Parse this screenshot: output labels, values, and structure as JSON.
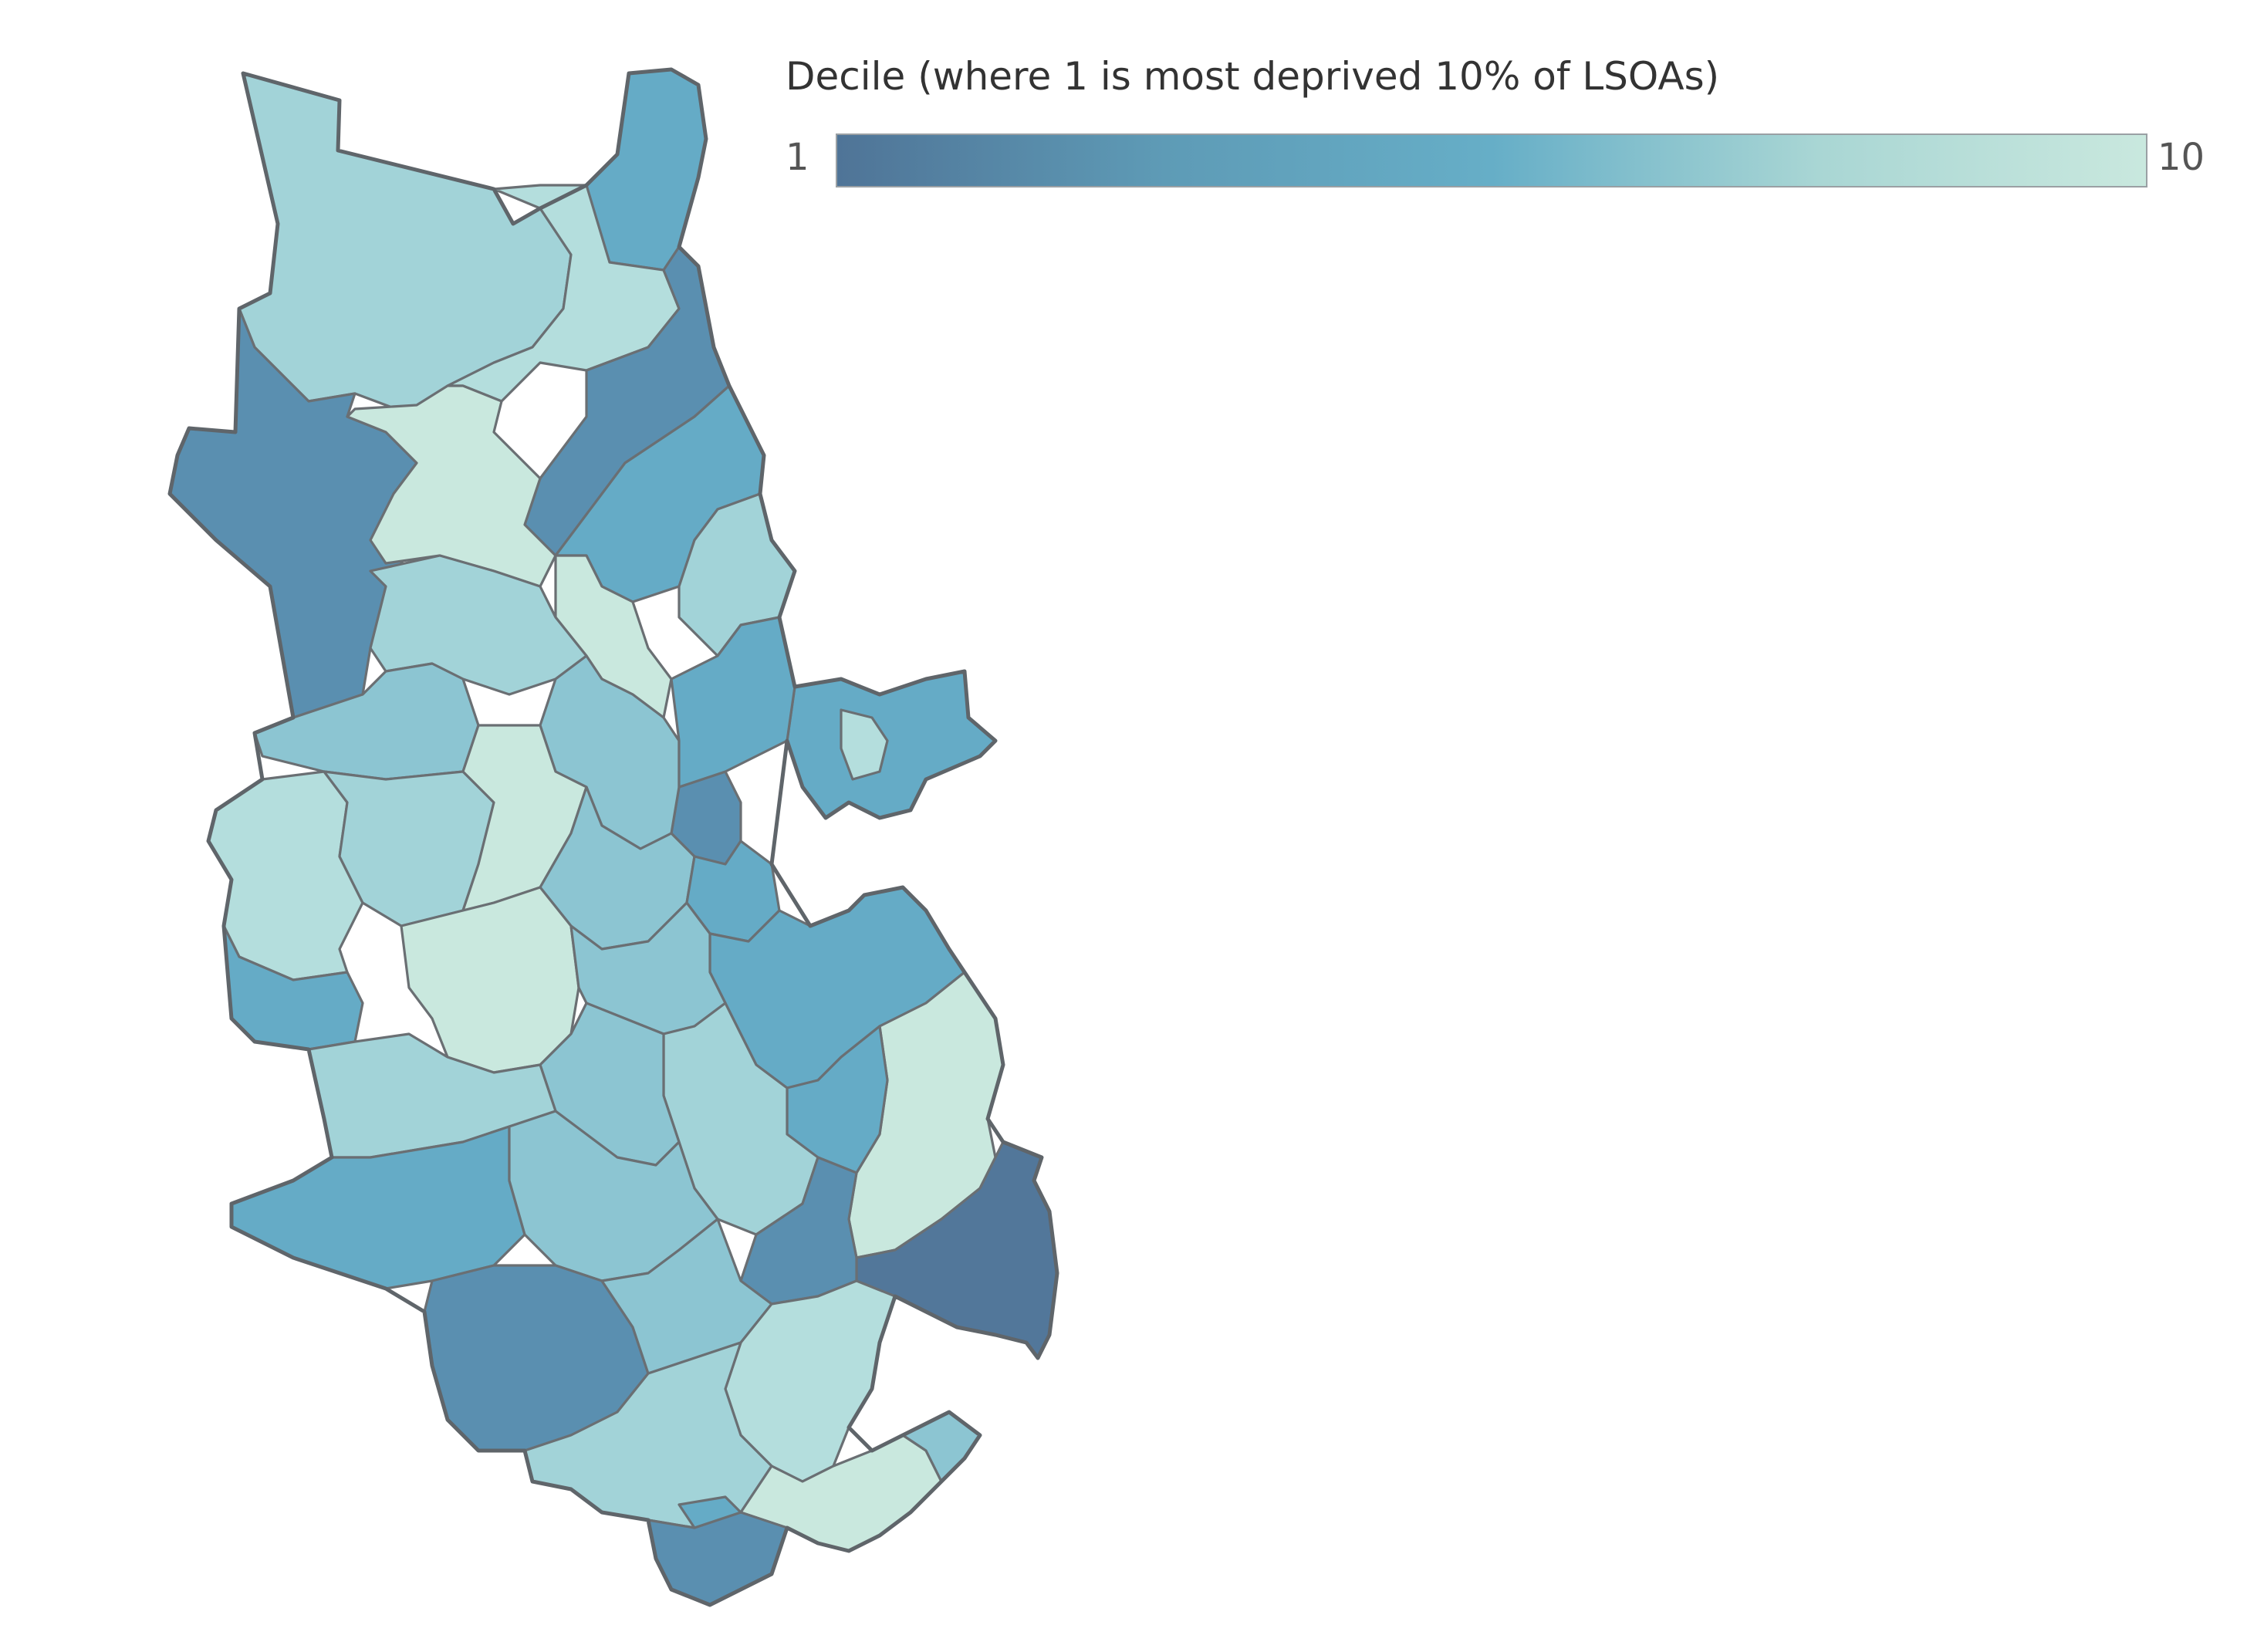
{
  "legend": {
    "title": "Decile (where 1 is most deprived 10% of LSOAs)",
    "min_label": "1",
    "max_label": "10",
    "color_min": "#4f7497",
    "color_max": "#c9e8de",
    "gradient_stops": [
      "#4f7497",
      "#5e9bb6",
      "#66aec7",
      "#a9d6d4",
      "#c9e8de"
    ]
  },
  "palette": {
    "d1": "#52779a",
    "d2": "#5a8fb0",
    "d3": "#65abc6",
    "d5": "#8cc5d2",
    "d7": "#a2d3d8",
    "d9": "#b4dedd",
    "d10": "#c9e8de"
  }
}
